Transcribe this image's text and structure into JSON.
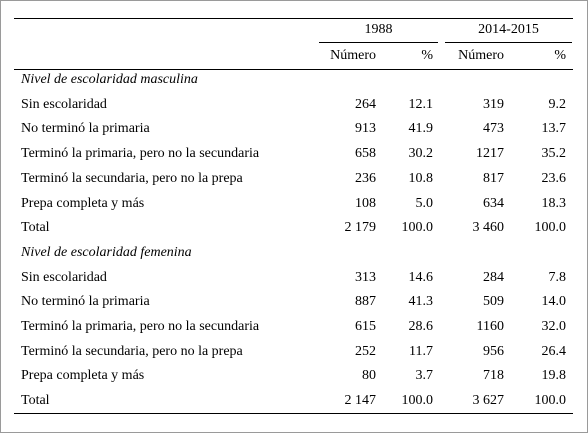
{
  "table": {
    "groups": [
      "1988",
      "2014-2015"
    ],
    "subheaders": [
      "Número",
      "%",
      "Número",
      "%"
    ],
    "sections": [
      {
        "title": "Nivel de escolaridad masculina",
        "rows": [
          [
            "Sin escolaridad",
            "264",
            "12.1",
            "319",
            "9.2"
          ],
          [
            "No terminó la primaria",
            "913",
            "41.9",
            "473",
            "13.7"
          ],
          [
            "Terminó la primaria, pero no la secundaria",
            "658",
            "30.2",
            "1217",
            "35.2"
          ],
          [
            "Terminó la secundaria, pero no la prepa",
            "236",
            "10.8",
            "817",
            "23.6"
          ],
          [
            "Prepa completa y más",
            "108",
            "5.0",
            "634",
            "18.3"
          ],
          [
            "Total",
            "2 179",
            "100.0",
            "3 460",
            "100.0"
          ]
        ]
      },
      {
        "title": "Nivel de escolaridad femenina",
        "rows": [
          [
            "Sin escolaridad",
            "313",
            "14.6",
            "284",
            "7.8"
          ],
          [
            "No terminó la primaria",
            "887",
            "41.3",
            "509",
            "14.0"
          ],
          [
            "Terminó la primaria, pero no la secundaria",
            "615",
            "28.6",
            "1160",
            "32.0"
          ],
          [
            "Terminó la secundaria, pero no la prepa",
            "252",
            "11.7",
            "956",
            "26.4"
          ],
          [
            "Prepa completa y más",
            "80",
            "3.7",
            "718",
            "19.8"
          ],
          [
            "Total",
            "2 147",
            "100.0",
            "3 627",
            "100.0"
          ]
        ]
      }
    ]
  }
}
